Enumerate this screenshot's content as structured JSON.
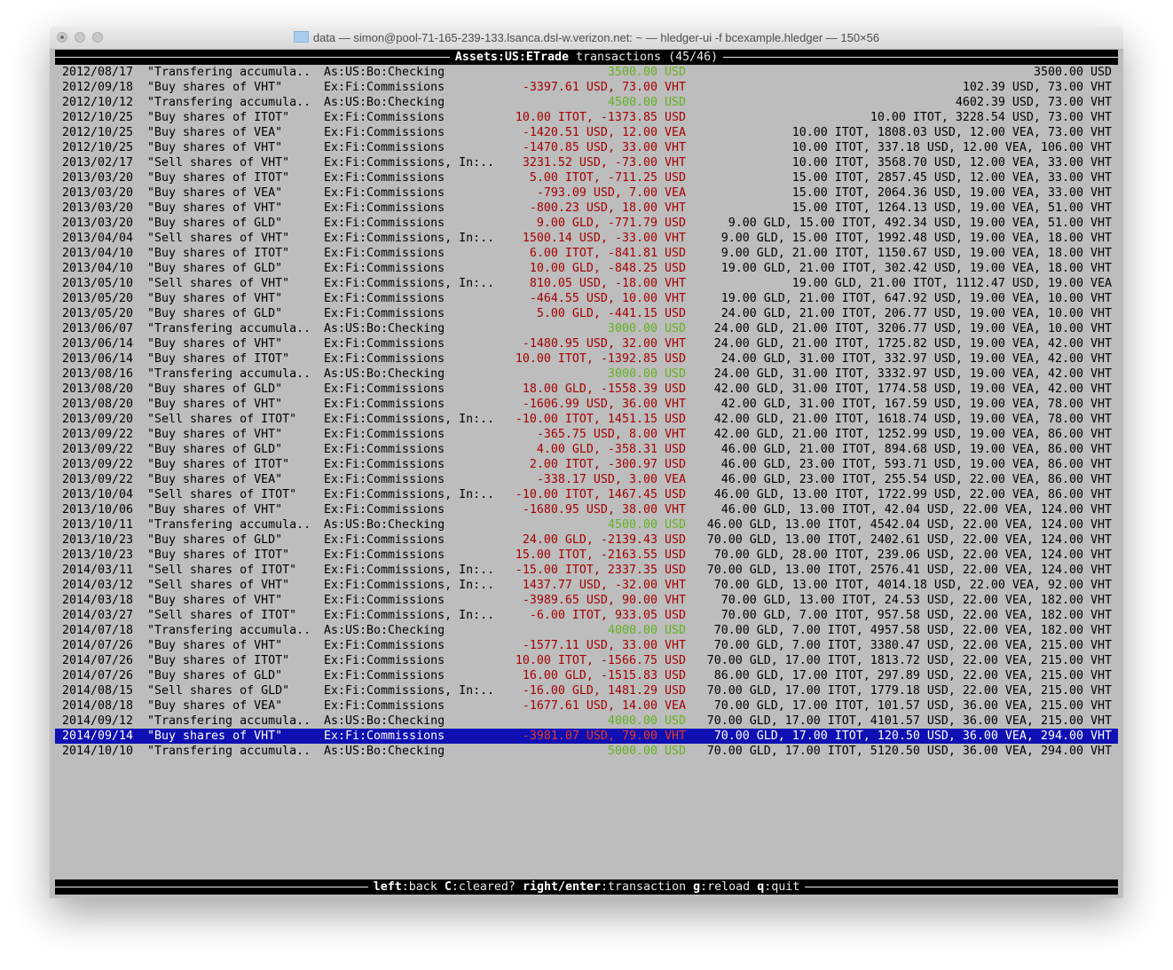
{
  "window": {
    "title": "data — simon@pool-71-165-239-133.lsanca.dsl-w.verizon.net: ~ — hledger-ui -f bcexample.hledger — 150×56",
    "folder_icon": "folder-icon"
  },
  "header": {
    "account": "Assets:US:ETrade",
    "label": "transactions",
    "count": "(45/46)"
  },
  "footer": {
    "keys": [
      {
        "key": "left",
        "action": "back"
      },
      {
        "key": "C",
        "action": "cleared?"
      },
      {
        "key": "right/enter",
        "action": "transaction"
      },
      {
        "key": "g",
        "action": "reload"
      },
      {
        "key": "q",
        "action": "quit"
      }
    ]
  },
  "colors": {
    "positive": "#63b21e",
    "negative": "#a50000",
    "selection": "#0f0fb4",
    "background": "#bdbdbd"
  },
  "selected_index": 44,
  "rows": [
    {
      "date": "2012/08/17",
      "desc": "\"Transfering accumula..",
      "acct": "As:US:Bo:Checking",
      "change": "3500.00 USD",
      "color": "green",
      "balance": "3500.00 USD"
    },
    {
      "date": "2012/09/18",
      "desc": "\"Buy shares of VHT\"",
      "acct": "Ex:Fi:Commissions",
      "change": "-3397.61 USD, 73.00 VHT",
      "color": "red",
      "balance": "102.39 USD, 73.00 VHT"
    },
    {
      "date": "2012/10/12",
      "desc": "\"Transfering accumula..",
      "acct": "As:US:Bo:Checking",
      "change": "4500.00 USD",
      "color": "green",
      "balance": "4602.39 USD, 73.00 VHT"
    },
    {
      "date": "2012/10/25",
      "desc": "\"Buy shares of ITOT\"",
      "acct": "Ex:Fi:Commissions",
      "change": "10.00 ITOT, -1373.85 USD",
      "color": "red",
      "balance": "10.00 ITOT, 3228.54 USD, 73.00 VHT"
    },
    {
      "date": "2012/10/25",
      "desc": "\"Buy shares of VEA\"",
      "acct": "Ex:Fi:Commissions",
      "change": "-1420.51 USD, 12.00 VEA",
      "color": "red",
      "balance": "10.00 ITOT, 1808.03 USD, 12.00 VEA, 73.00 VHT"
    },
    {
      "date": "2012/10/25",
      "desc": "\"Buy shares of VHT\"",
      "acct": "Ex:Fi:Commissions",
      "change": "-1470.85 USD, 33.00 VHT",
      "color": "red",
      "balance": "10.00 ITOT, 337.18 USD, 12.00 VEA, 106.00 VHT"
    },
    {
      "date": "2013/02/17",
      "desc": "\"Sell shares of VHT\"",
      "acct": "Ex:Fi:Commissions, In:..",
      "change": "3231.52 USD, -73.00 VHT",
      "color": "red",
      "balance": "10.00 ITOT, 3568.70 USD, 12.00 VEA, 33.00 VHT"
    },
    {
      "date": "2013/03/20",
      "desc": "\"Buy shares of ITOT\"",
      "acct": "Ex:Fi:Commissions",
      "change": "5.00 ITOT, -711.25 USD",
      "color": "red",
      "balance": "15.00 ITOT, 2857.45 USD, 12.00 VEA, 33.00 VHT"
    },
    {
      "date": "2013/03/20",
      "desc": "\"Buy shares of VEA\"",
      "acct": "Ex:Fi:Commissions",
      "change": "-793.09 USD, 7.00 VEA",
      "color": "red",
      "balance": "15.00 ITOT, 2064.36 USD, 19.00 VEA, 33.00 VHT"
    },
    {
      "date": "2013/03/20",
      "desc": "\"Buy shares of VHT\"",
      "acct": "Ex:Fi:Commissions",
      "change": "-800.23 USD, 18.00 VHT",
      "color": "red",
      "balance": "15.00 ITOT, 1264.13 USD, 19.00 VEA, 51.00 VHT"
    },
    {
      "date": "2013/03/20",
      "desc": "\"Buy shares of GLD\"",
      "acct": "Ex:Fi:Commissions",
      "change": "9.00 GLD, -771.79 USD",
      "color": "red",
      "balance": "9.00 GLD, 15.00 ITOT, 492.34 USD, 19.00 VEA, 51.00 VHT"
    },
    {
      "date": "2013/04/04",
      "desc": "\"Sell shares of VHT\"",
      "acct": "Ex:Fi:Commissions, In:..",
      "change": "1500.14 USD, -33.00 VHT",
      "color": "red",
      "balance": "9.00 GLD, 15.00 ITOT, 1992.48 USD, 19.00 VEA, 18.00 VHT"
    },
    {
      "date": "2013/04/10",
      "desc": "\"Buy shares of ITOT\"",
      "acct": "Ex:Fi:Commissions",
      "change": "6.00 ITOT, -841.81 USD",
      "color": "red",
      "balance": "9.00 GLD, 21.00 ITOT, 1150.67 USD, 19.00 VEA, 18.00 VHT"
    },
    {
      "date": "2013/04/10",
      "desc": "\"Buy shares of GLD\"",
      "acct": "Ex:Fi:Commissions",
      "change": "10.00 GLD, -848.25 USD",
      "color": "red",
      "balance": "19.00 GLD, 21.00 ITOT, 302.42 USD, 19.00 VEA, 18.00 VHT"
    },
    {
      "date": "2013/05/10",
      "desc": "\"Sell shares of VHT\"",
      "acct": "Ex:Fi:Commissions, In:..",
      "change": "810.05 USD, -18.00 VHT",
      "color": "red",
      "balance": "19.00 GLD, 21.00 ITOT, 1112.47 USD, 19.00 VEA"
    },
    {
      "date": "2013/05/20",
      "desc": "\"Buy shares of VHT\"",
      "acct": "Ex:Fi:Commissions",
      "change": "-464.55 USD, 10.00 VHT",
      "color": "red",
      "balance": "19.00 GLD, 21.00 ITOT, 647.92 USD, 19.00 VEA, 10.00 VHT"
    },
    {
      "date": "2013/05/20",
      "desc": "\"Buy shares of GLD\"",
      "acct": "Ex:Fi:Commissions",
      "change": "5.00 GLD, -441.15 USD",
      "color": "red",
      "balance": "24.00 GLD, 21.00 ITOT, 206.77 USD, 19.00 VEA, 10.00 VHT"
    },
    {
      "date": "2013/06/07",
      "desc": "\"Transfering accumula..",
      "acct": "As:US:Bo:Checking",
      "change": "3000.00 USD",
      "color": "green",
      "balance": "24.00 GLD, 21.00 ITOT, 3206.77 USD, 19.00 VEA, 10.00 VHT"
    },
    {
      "date": "2013/06/14",
      "desc": "\"Buy shares of VHT\"",
      "acct": "Ex:Fi:Commissions",
      "change": "-1480.95 USD, 32.00 VHT",
      "color": "red",
      "balance": "24.00 GLD, 21.00 ITOT, 1725.82 USD, 19.00 VEA, 42.00 VHT"
    },
    {
      "date": "2013/06/14",
      "desc": "\"Buy shares of ITOT\"",
      "acct": "Ex:Fi:Commissions",
      "change": "10.00 ITOT, -1392.85 USD",
      "color": "red",
      "balance": "24.00 GLD, 31.00 ITOT, 332.97 USD, 19.00 VEA, 42.00 VHT"
    },
    {
      "date": "2013/08/16",
      "desc": "\"Transfering accumula..",
      "acct": "As:US:Bo:Checking",
      "change": "3000.00 USD",
      "color": "green",
      "balance": "24.00 GLD, 31.00 ITOT, 3332.97 USD, 19.00 VEA, 42.00 VHT"
    },
    {
      "date": "2013/08/20",
      "desc": "\"Buy shares of GLD\"",
      "acct": "Ex:Fi:Commissions",
      "change": "18.00 GLD, -1558.39 USD",
      "color": "red",
      "balance": "42.00 GLD, 31.00 ITOT, 1774.58 USD, 19.00 VEA, 42.00 VHT"
    },
    {
      "date": "2013/08/20",
      "desc": "\"Buy shares of VHT\"",
      "acct": "Ex:Fi:Commissions",
      "change": "-1606.99 USD, 36.00 VHT",
      "color": "red",
      "balance": "42.00 GLD, 31.00 ITOT, 167.59 USD, 19.00 VEA, 78.00 VHT"
    },
    {
      "date": "2013/09/20",
      "desc": "\"Sell shares of ITOT\"",
      "acct": "Ex:Fi:Commissions, In:..",
      "change": "-10.00 ITOT, 1451.15 USD",
      "color": "red",
      "balance": "42.00 GLD, 21.00 ITOT, 1618.74 USD, 19.00 VEA, 78.00 VHT"
    },
    {
      "date": "2013/09/22",
      "desc": "\"Buy shares of VHT\"",
      "acct": "Ex:Fi:Commissions",
      "change": "-365.75 USD, 8.00 VHT",
      "color": "red",
      "balance": "42.00 GLD, 21.00 ITOT, 1252.99 USD, 19.00 VEA, 86.00 VHT"
    },
    {
      "date": "2013/09/22",
      "desc": "\"Buy shares of GLD\"",
      "acct": "Ex:Fi:Commissions",
      "change": "4.00 GLD, -358.31 USD",
      "color": "red",
      "balance": "46.00 GLD, 21.00 ITOT, 894.68 USD, 19.00 VEA, 86.00 VHT"
    },
    {
      "date": "2013/09/22",
      "desc": "\"Buy shares of ITOT\"",
      "acct": "Ex:Fi:Commissions",
      "change": "2.00 ITOT, -300.97 USD",
      "color": "red",
      "balance": "46.00 GLD, 23.00 ITOT, 593.71 USD, 19.00 VEA, 86.00 VHT"
    },
    {
      "date": "2013/09/22",
      "desc": "\"Buy shares of VEA\"",
      "acct": "Ex:Fi:Commissions",
      "change": "-338.17 USD, 3.00 VEA",
      "color": "red",
      "balance": "46.00 GLD, 23.00 ITOT, 255.54 USD, 22.00 VEA, 86.00 VHT"
    },
    {
      "date": "2013/10/04",
      "desc": "\"Sell shares of ITOT\"",
      "acct": "Ex:Fi:Commissions, In:..",
      "change": "-10.00 ITOT, 1467.45 USD",
      "color": "red",
      "balance": "46.00 GLD, 13.00 ITOT, 1722.99 USD, 22.00 VEA, 86.00 VHT"
    },
    {
      "date": "2013/10/06",
      "desc": "\"Buy shares of VHT\"",
      "acct": "Ex:Fi:Commissions",
      "change": "-1680.95 USD, 38.00 VHT",
      "color": "red",
      "balance": "46.00 GLD, 13.00 ITOT, 42.04 USD, 22.00 VEA, 124.00 VHT"
    },
    {
      "date": "2013/10/11",
      "desc": "\"Transfering accumula..",
      "acct": "As:US:Bo:Checking",
      "change": "4500.00 USD",
      "color": "green",
      "balance": "46.00 GLD, 13.00 ITOT, 4542.04 USD, 22.00 VEA, 124.00 VHT"
    },
    {
      "date": "2013/10/23",
      "desc": "\"Buy shares of GLD\"",
      "acct": "Ex:Fi:Commissions",
      "change": "24.00 GLD, -2139.43 USD",
      "color": "red",
      "balance": "70.00 GLD, 13.00 ITOT, 2402.61 USD, 22.00 VEA, 124.00 VHT"
    },
    {
      "date": "2013/10/23",
      "desc": "\"Buy shares of ITOT\"",
      "acct": "Ex:Fi:Commissions",
      "change": "15.00 ITOT, -2163.55 USD",
      "color": "red",
      "balance": "70.00 GLD, 28.00 ITOT, 239.06 USD, 22.00 VEA, 124.00 VHT"
    },
    {
      "date": "2014/03/11",
      "desc": "\"Sell shares of ITOT\"",
      "acct": "Ex:Fi:Commissions, In:..",
      "change": "-15.00 ITOT, 2337.35 USD",
      "color": "red",
      "balance": "70.00 GLD, 13.00 ITOT, 2576.41 USD, 22.00 VEA, 124.00 VHT"
    },
    {
      "date": "2014/03/12",
      "desc": "\"Sell shares of VHT\"",
      "acct": "Ex:Fi:Commissions, In:..",
      "change": "1437.77 USD, -32.00 VHT",
      "color": "red",
      "balance": "70.00 GLD, 13.00 ITOT, 4014.18 USD, 22.00 VEA, 92.00 VHT"
    },
    {
      "date": "2014/03/18",
      "desc": "\"Buy shares of VHT\"",
      "acct": "Ex:Fi:Commissions",
      "change": "-3989.65 USD, 90.00 VHT",
      "color": "red",
      "balance": "70.00 GLD, 13.00 ITOT, 24.53 USD, 22.00 VEA, 182.00 VHT"
    },
    {
      "date": "2014/03/27",
      "desc": "\"Sell shares of ITOT\"",
      "acct": "Ex:Fi:Commissions, In:..",
      "change": "-6.00 ITOT, 933.05 USD",
      "color": "red",
      "balance": "70.00 GLD, 7.00 ITOT, 957.58 USD, 22.00 VEA, 182.00 VHT"
    },
    {
      "date": "2014/07/18",
      "desc": "\"Transfering accumula..",
      "acct": "As:US:Bo:Checking",
      "change": "4000.00 USD",
      "color": "green",
      "balance": "70.00 GLD, 7.00 ITOT, 4957.58 USD, 22.00 VEA, 182.00 VHT"
    },
    {
      "date": "2014/07/26",
      "desc": "\"Buy shares of VHT\"",
      "acct": "Ex:Fi:Commissions",
      "change": "-1577.11 USD, 33.00 VHT",
      "color": "red",
      "balance": "70.00 GLD, 7.00 ITOT, 3380.47 USD, 22.00 VEA, 215.00 VHT"
    },
    {
      "date": "2014/07/26",
      "desc": "\"Buy shares of ITOT\"",
      "acct": "Ex:Fi:Commissions",
      "change": "10.00 ITOT, -1566.75 USD",
      "color": "red",
      "balance": "70.00 GLD, 17.00 ITOT, 1813.72 USD, 22.00 VEA, 215.00 VHT"
    },
    {
      "date": "2014/07/26",
      "desc": "\"Buy shares of GLD\"",
      "acct": "Ex:Fi:Commissions",
      "change": "16.00 GLD, -1515.83 USD",
      "color": "red",
      "balance": "86.00 GLD, 17.00 ITOT, 297.89 USD, 22.00 VEA, 215.00 VHT"
    },
    {
      "date": "2014/08/15",
      "desc": "\"Sell shares of GLD\"",
      "acct": "Ex:Fi:Commissions, In:..",
      "change": "-16.00 GLD, 1481.29 USD",
      "color": "red",
      "balance": "70.00 GLD, 17.00 ITOT, 1779.18 USD, 22.00 VEA, 215.00 VHT"
    },
    {
      "date": "2014/08/18",
      "desc": "\"Buy shares of VEA\"",
      "acct": "Ex:Fi:Commissions",
      "change": "-1677.61 USD, 14.00 VEA",
      "color": "red",
      "balance": "70.00 GLD, 17.00 ITOT, 101.57 USD, 36.00 VEA, 215.00 VHT"
    },
    {
      "date": "2014/09/12",
      "desc": "\"Transfering accumula..",
      "acct": "As:US:Bo:Checking",
      "change": "4000.00 USD",
      "color": "green",
      "balance": "70.00 GLD, 17.00 ITOT, 4101.57 USD, 36.00 VEA, 215.00 VHT"
    },
    {
      "date": "2014/09/14",
      "desc": "\"Buy shares of VHT\"",
      "acct": "Ex:Fi:Commissions",
      "change": "-3981.07 USD, 79.00 VHT",
      "color": "red",
      "balance": "70.00 GLD, 17.00 ITOT, 120.50 USD, 36.00 VEA, 294.00 VHT"
    },
    {
      "date": "2014/10/10",
      "desc": "\"Transfering accumula..",
      "acct": "As:US:Bo:Checking",
      "change": "5000.00 USD",
      "color": "green",
      "balance": "70.00 GLD, 17.00 ITOT, 5120.50 USD, 36.00 VEA, 294.00 VHT"
    }
  ]
}
